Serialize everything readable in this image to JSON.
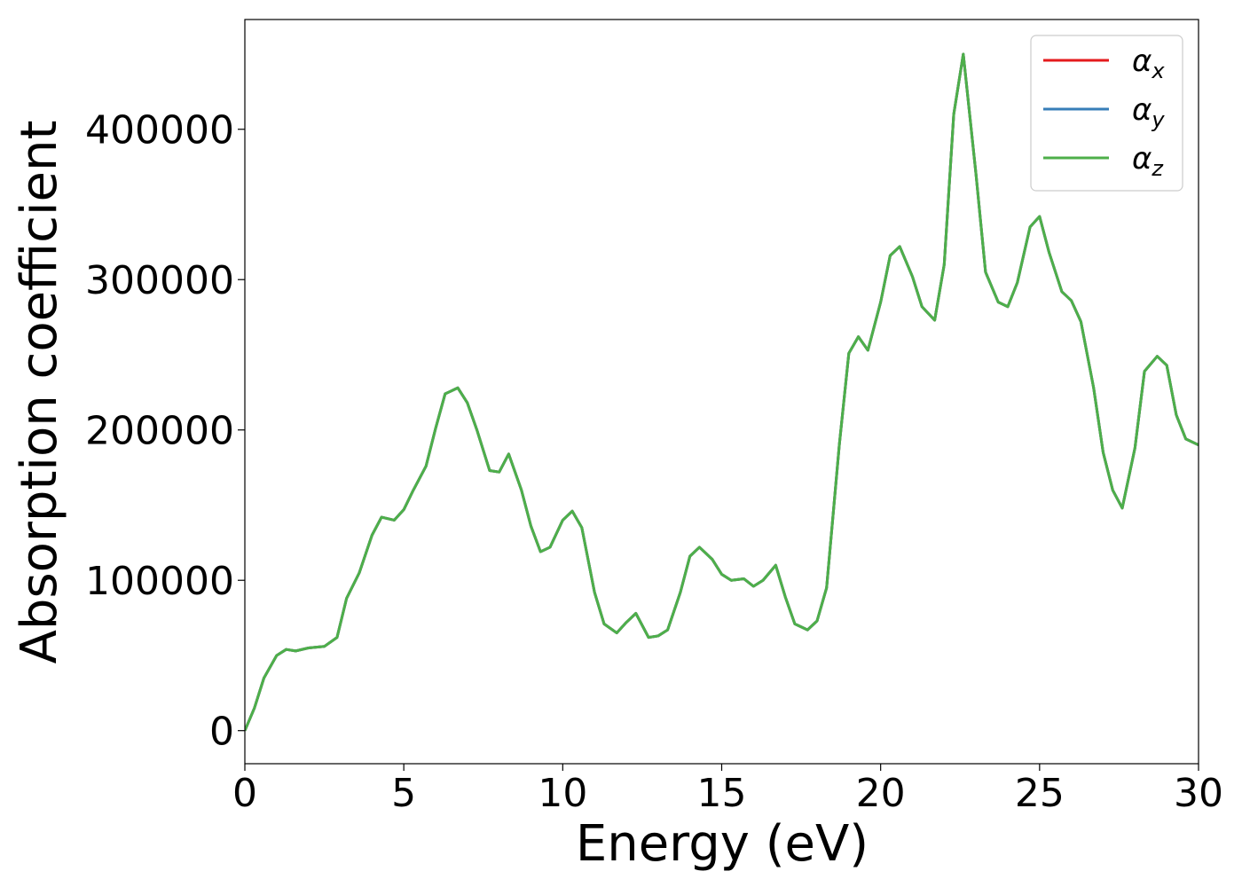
{
  "chart_data": {
    "type": "line",
    "title": "",
    "xlabel": "Energy (eV)",
    "ylabel": "Absorption coefficient",
    "xlim": [
      0,
      30
    ],
    "ylim": [
      -22000,
      473000
    ],
    "xticks": [
      0,
      5,
      10,
      15,
      20,
      25,
      30
    ],
    "yticks": [
      0,
      100000,
      200000,
      300000,
      400000
    ],
    "grid": false,
    "legend_position": "top-right",
    "series": [
      {
        "symbol": "α",
        "subscript": "x",
        "color": "#e41a1c"
      },
      {
        "symbol": "α",
        "subscript": "y",
        "color": "#377eb8"
      },
      {
        "symbol": "α",
        "subscript": "z",
        "color": "#4daf4a"
      }
    ],
    "x": [
      0,
      0.3,
      0.6,
      1.0,
      1.3,
      1.6,
      2.0,
      2.5,
      2.9,
      3.2,
      3.6,
      4.0,
      4.3,
      4.7,
      5.0,
      5.3,
      5.7,
      6.0,
      6.3,
      6.7,
      7.0,
      7.3,
      7.7,
      8.0,
      8.3,
      8.7,
      9.0,
      9.3,
      9.6,
      10.0,
      10.3,
      10.6,
      11.0,
      11.3,
      11.7,
      12.0,
      12.3,
      12.7,
      13.0,
      13.3,
      13.7,
      14.0,
      14.3,
      14.7,
      15.0,
      15.3,
      15.7,
      16.0,
      16.3,
      16.7,
      17.0,
      17.3,
      17.7,
      18.0,
      18.3,
      18.7,
      19.0,
      19.3,
      19.6,
      20.0,
      20.3,
      20.6,
      21.0,
      21.3,
      21.7,
      22.0,
      22.3,
      22.6,
      23.0,
      23.3,
      23.7,
      24.0,
      24.3,
      24.7,
      25.0,
      25.3,
      25.7,
      26.0,
      26.3,
      26.7,
      27.0,
      27.3,
      27.6,
      28.0,
      28.3,
      28.7,
      29.0,
      29.3,
      29.6,
      30.0
    ],
    "y": [
      0,
      15000,
      35000,
      50000,
      54000,
      53000,
      55000,
      56000,
      62000,
      88000,
      105000,
      130000,
      142000,
      140000,
      147000,
      160000,
      176000,
      201000,
      224000,
      228000,
      218000,
      200000,
      173000,
      172000,
      184000,
      160000,
      136000,
      119000,
      122000,
      140000,
      146000,
      135000,
      92000,
      71000,
      65000,
      72000,
      78000,
      62000,
      63000,
      67000,
      92000,
      116000,
      122000,
      114000,
      104000,
      100000,
      101000,
      96000,
      100000,
      110000,
      89000,
      71000,
      67000,
      73000,
      95000,
      190000,
      251000,
      262000,
      253000,
      285000,
      316000,
      322000,
      302000,
      282000,
      273000,
      310000,
      410000,
      450000,
      370000,
      305000,
      285000,
      282000,
      298000,
      335000,
      342000,
      318000,
      292000,
      286000,
      272000,
      228000,
      185000,
      160000,
      148000,
      188000,
      239000,
      249000,
      243000,
      210000,
      194000,
      190000
    ]
  }
}
